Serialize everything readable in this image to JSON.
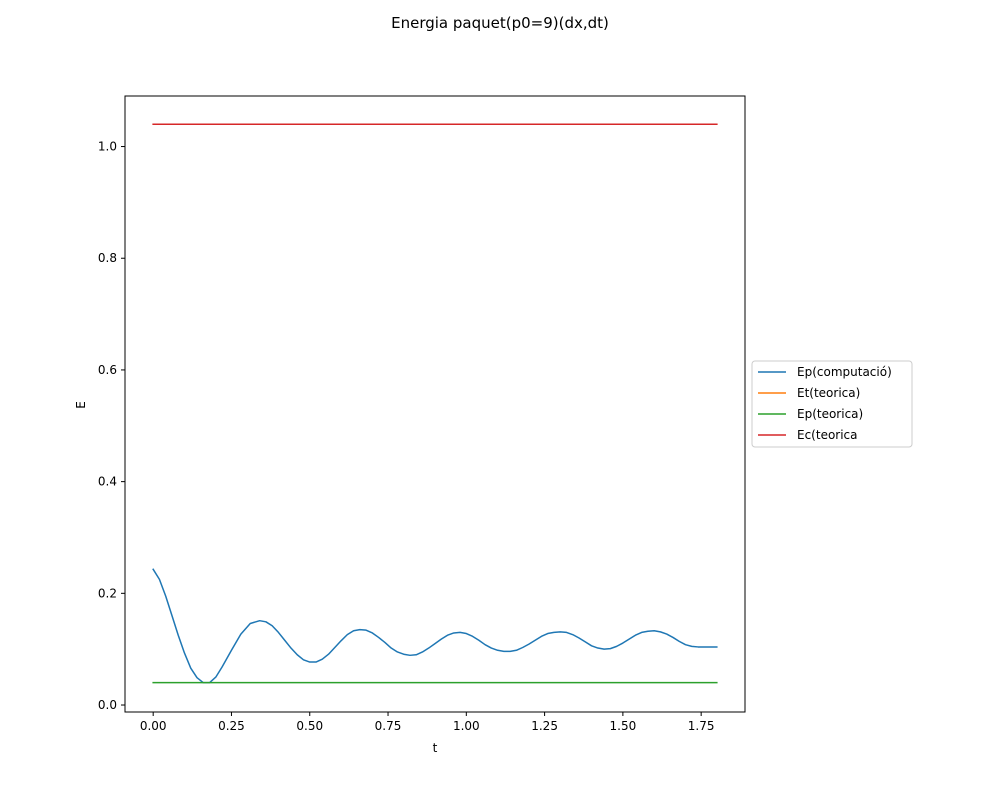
{
  "chart_data": {
    "type": "line",
    "title": "Energia paquet(p0=9)(dx,dt)",
    "xlabel": "t",
    "ylabel": "E",
    "xlim": [
      -0.09,
      1.89
    ],
    "ylim": [
      -0.0125,
      1.0905
    ],
    "xticks": [
      0.0,
      0.25,
      0.5,
      0.75,
      1.0,
      1.25,
      1.5,
      1.75
    ],
    "xtick_labels": [
      "0.00",
      "0.25",
      "0.50",
      "0.75",
      "1.00",
      "1.25",
      "1.50",
      "1.75"
    ],
    "yticks": [
      0.0,
      0.2,
      0.4,
      0.6,
      0.8,
      1.0
    ],
    "ytick_labels": [
      "0.0",
      "0.2",
      "0.4",
      "0.6",
      "0.8",
      "1.0"
    ],
    "grid": false,
    "legend_position": "right",
    "legend": [
      "Ep(computació)",
      "Et(teorica)",
      "Ep(teorica)",
      "Ec(teorica"
    ],
    "series": [
      {
        "name": "Ep(computació)",
        "color": "#1f77b4",
        "x": [
          0.0,
          0.02,
          0.04,
          0.06,
          0.08,
          0.1,
          0.12,
          0.14,
          0.16,
          0.18,
          0.2,
          0.22,
          0.25,
          0.28,
          0.31,
          0.34,
          0.36,
          0.38,
          0.4,
          0.42,
          0.44,
          0.46,
          0.48,
          0.5,
          0.52,
          0.54,
          0.56,
          0.58,
          0.6,
          0.62,
          0.64,
          0.66,
          0.68,
          0.7,
          0.72,
          0.74,
          0.76,
          0.78,
          0.8,
          0.82,
          0.84,
          0.86,
          0.88,
          0.9,
          0.92,
          0.94,
          0.96,
          0.98,
          1.0,
          1.02,
          1.04,
          1.06,
          1.08,
          1.1,
          1.12,
          1.14,
          1.16,
          1.18,
          1.2,
          1.22,
          1.24,
          1.26,
          1.28,
          1.3,
          1.32,
          1.34,
          1.36,
          1.38,
          1.4,
          1.42,
          1.44,
          1.46,
          1.48,
          1.5,
          1.52,
          1.54,
          1.56,
          1.58,
          1.6,
          1.62,
          1.64,
          1.66,
          1.68,
          1.7,
          1.72,
          1.74,
          1.76,
          1.78,
          1.8
        ],
        "values": [
          0.243,
          0.225,
          0.195,
          0.16,
          0.125,
          0.093,
          0.066,
          0.049,
          0.04,
          0.04,
          0.05,
          0.068,
          0.098,
          0.127,
          0.146,
          0.151,
          0.149,
          0.142,
          0.13,
          0.116,
          0.102,
          0.09,
          0.081,
          0.077,
          0.077,
          0.082,
          0.091,
          0.103,
          0.115,
          0.126,
          0.133,
          0.135,
          0.134,
          0.129,
          0.121,
          0.112,
          0.102,
          0.095,
          0.091,
          0.089,
          0.09,
          0.095,
          0.102,
          0.11,
          0.118,
          0.125,
          0.129,
          0.13,
          0.128,
          0.123,
          0.116,
          0.108,
          0.102,
          0.098,
          0.096,
          0.096,
          0.098,
          0.103,
          0.109,
          0.116,
          0.123,
          0.128,
          0.13,
          0.131,
          0.13,
          0.126,
          0.12,
          0.113,
          0.106,
          0.102,
          0.1,
          0.101,
          0.105,
          0.111,
          0.118,
          0.125,
          0.13,
          0.132,
          0.133,
          0.131,
          0.127,
          0.121,
          0.114,
          0.108,
          0.105,
          0.104,
          0.104,
          0.104,
          0.104
        ]
      },
      {
        "name": "Et(teorica)",
        "color": "#ff7f0e",
        "x": [
          0.0,
          1.8
        ],
        "values": [
          1.04,
          1.04
        ]
      },
      {
        "name": "Ep(teorica)",
        "color": "#2ca02c",
        "x": [
          0.0,
          1.8
        ],
        "values": [
          0.04,
          0.04
        ]
      },
      {
        "name": "Ec(teorica",
        "color": "#d62728",
        "x": [
          0.0,
          1.8
        ],
        "values": [
          1.04,
          1.04
        ]
      }
    ]
  }
}
